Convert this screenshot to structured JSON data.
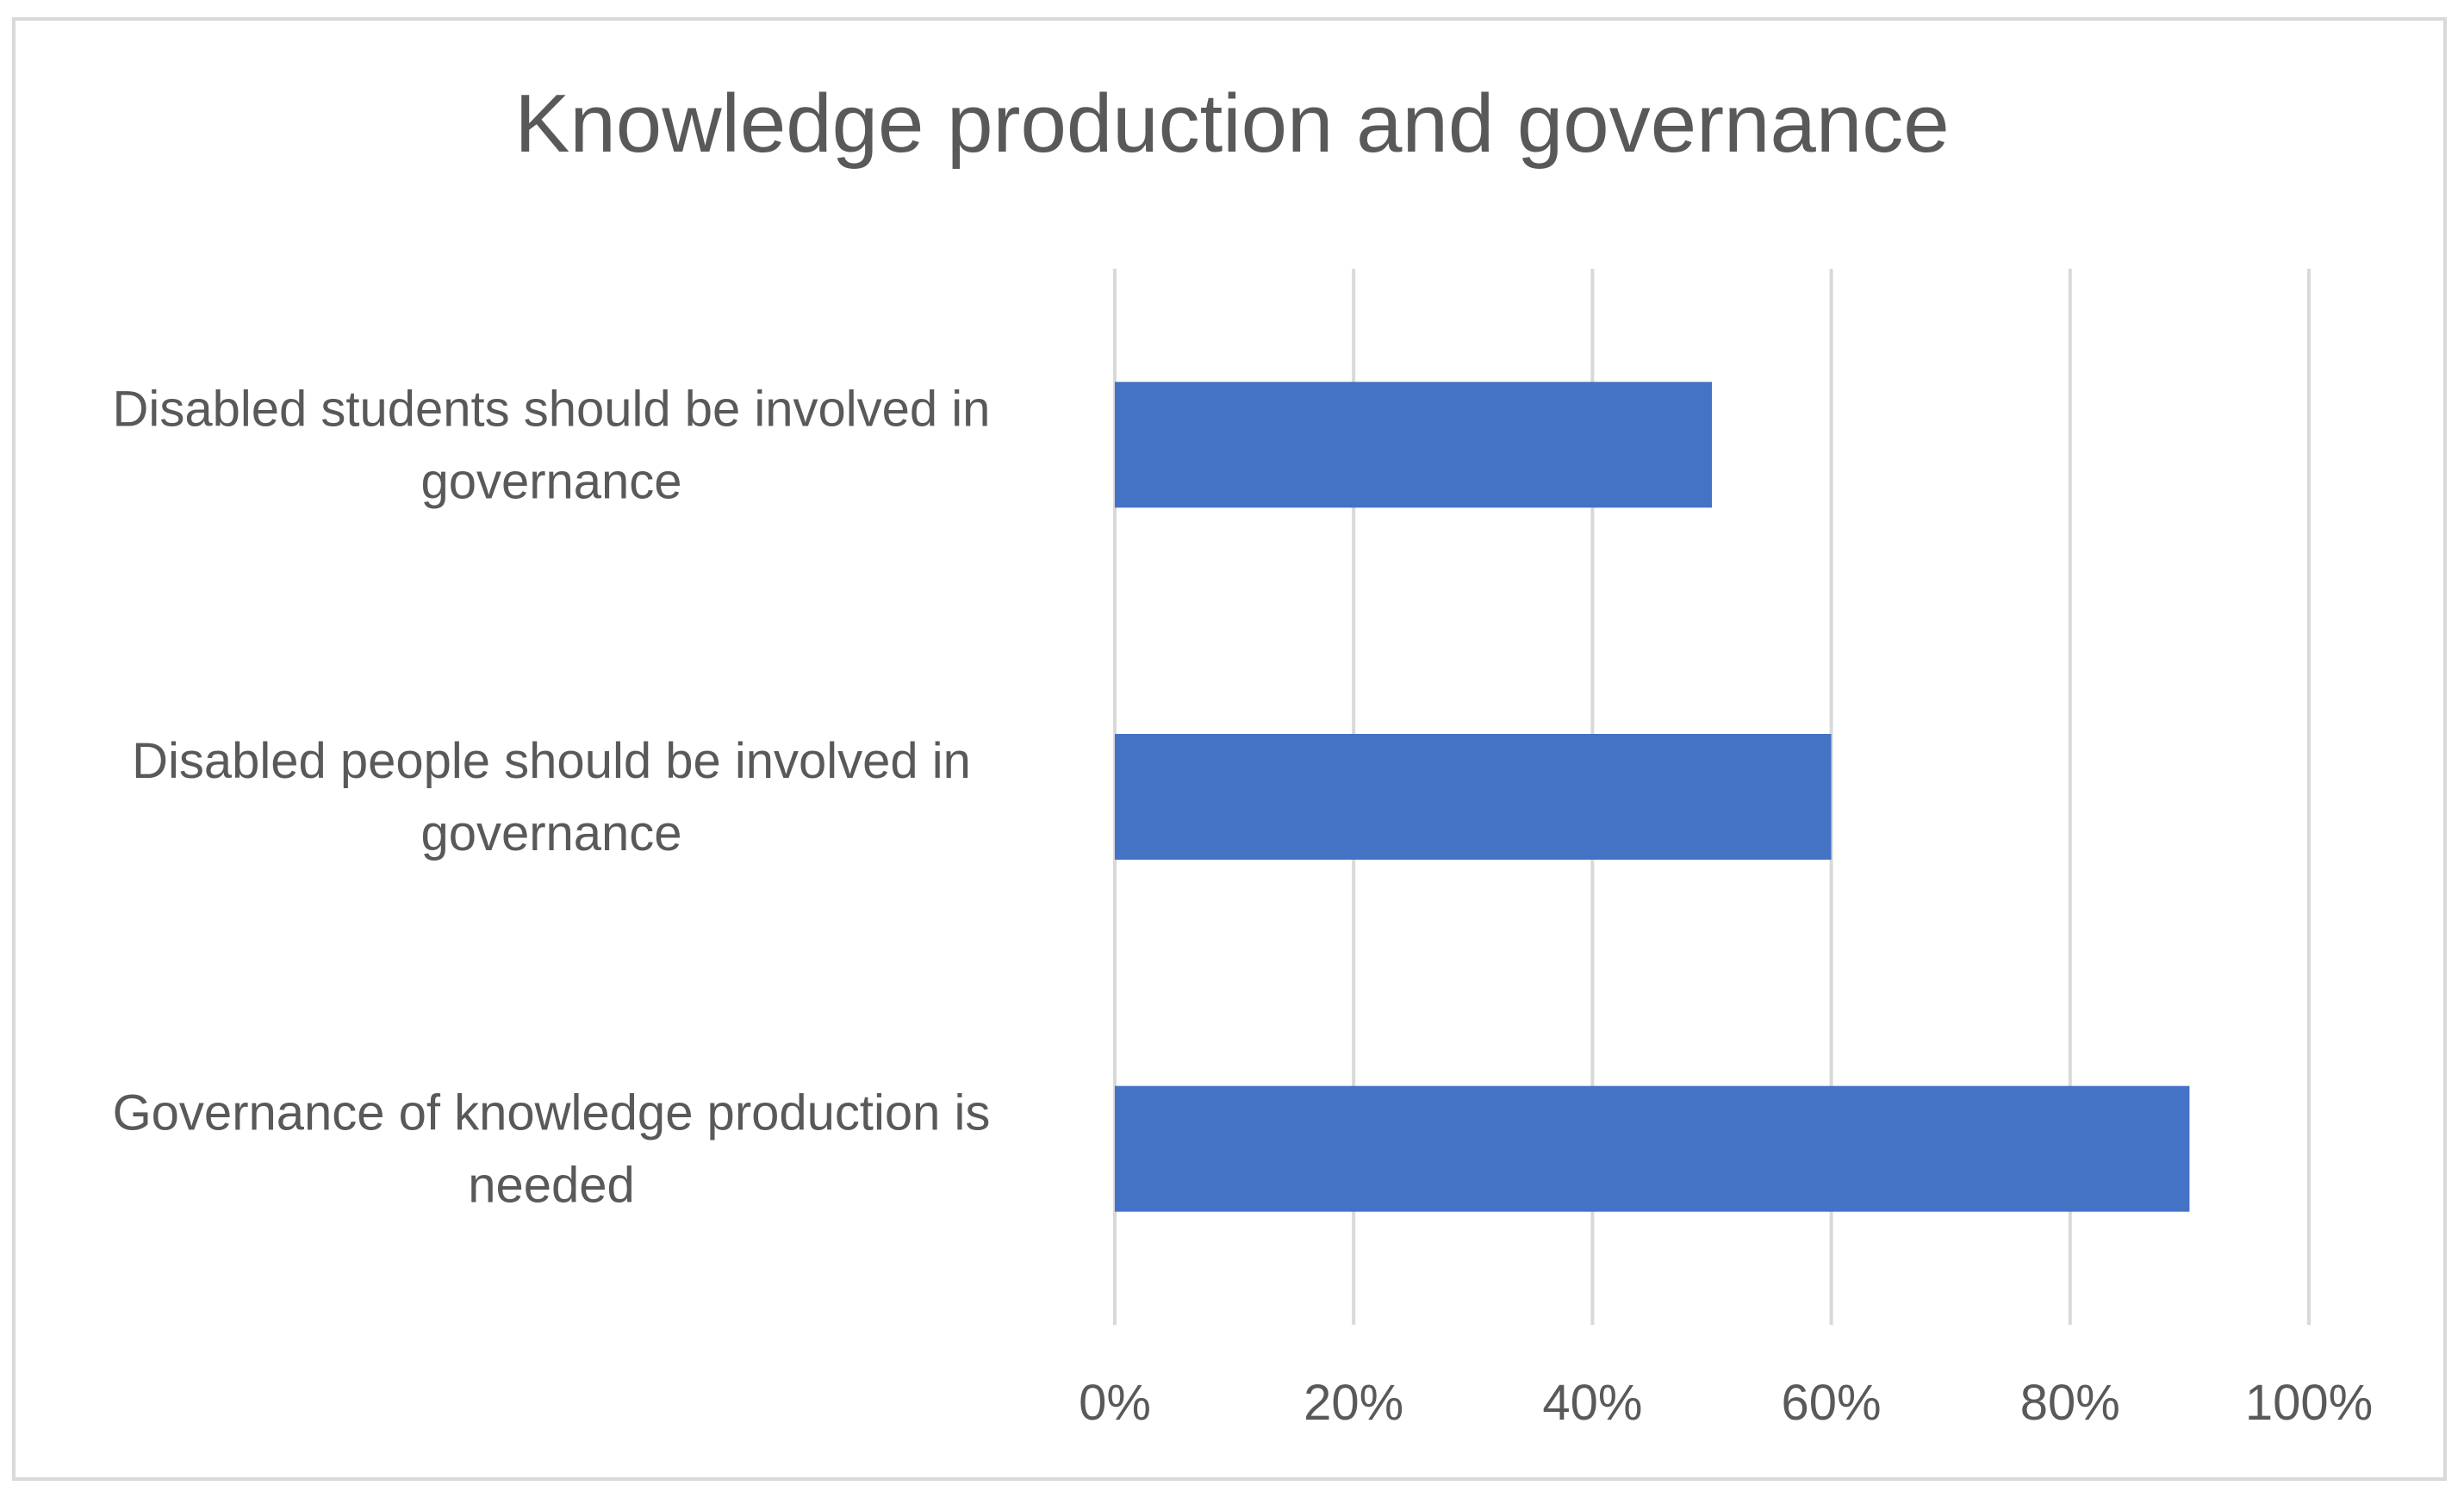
{
  "chart_data": {
    "type": "bar",
    "orientation": "horizontal",
    "title": "Knowledge production and governance",
    "xlabel": "",
    "ylabel": "",
    "categories": [
      [
        "Disabled students should be involved in",
        "governance"
      ],
      [
        "Disabled people should be involved in",
        "governance"
      ],
      [
        "Governance of knowledge production is",
        "needed"
      ]
    ],
    "values": [
      0.5,
      0.6,
      0.9
    ],
    "xlim": [
      0,
      1
    ],
    "xticks": [
      0,
      0.2,
      0.4,
      0.6,
      0.8,
      1.0
    ],
    "xtick_labels": [
      "0%",
      "20%",
      "40%",
      "60%",
      "80%",
      "100%"
    ],
    "grid": true,
    "legend": "none",
    "colors": {
      "bar": "#4472c4",
      "grid": "#d9d9d9",
      "text": "#595959",
      "border": "#d9d9d9"
    }
  }
}
